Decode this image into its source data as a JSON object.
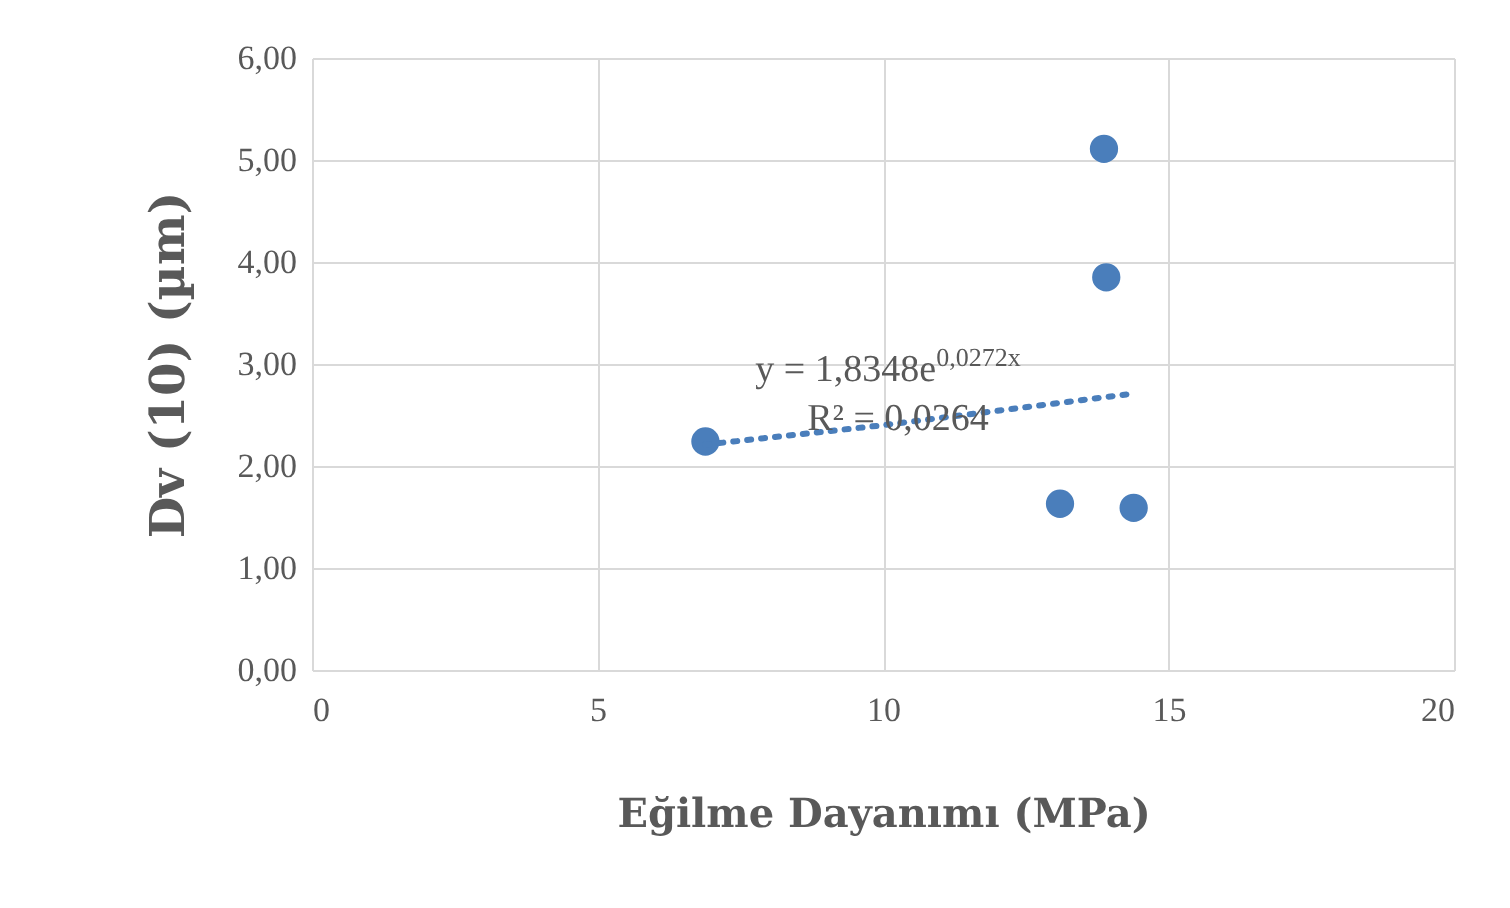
{
  "chart_data": {
    "type": "scatter",
    "xlabel": "Eğilme Dayanımı (MPa)",
    "ylabel": "Dv (10) (µm)",
    "x": [
      6.89,
      13.87,
      13.91,
      13.1,
      14.39
    ],
    "series": [
      {
        "color": "#4a7ebb",
        "values": [
          2.24,
          5.11,
          3.85,
          1.63,
          1.59
        ]
      },
      {
        "type": "line",
        "color": "#4a7ebb",
        "line_style": "dotted",
        "marker": "none",
        "x": [
          6.89,
          10,
          14.39
        ],
        "values": [
          2.21,
          2.4,
          2.71
        ]
      }
    ],
    "xlim": [
      0,
      20
    ],
    "xticks": [
      0,
      5,
      10,
      15,
      20
    ],
    "ylim": [
      0,
      6
    ],
    "yticks": [
      {
        "value": 0,
        "label": "0,00"
      },
      {
        "value": 1,
        "label": "1,00"
      },
      {
        "value": 2,
        "label": "2,00"
      },
      {
        "value": 3,
        "label": "3,00"
      },
      {
        "value": 4,
        "label": "4,00"
      },
      {
        "value": 5,
        "label": "5,00"
      },
      {
        "value": 6,
        "label": "6,00"
      }
    ],
    "grid": true,
    "marker": "circle",
    "annotations": [
      "y = 1,8348e$^{0,0272x}$",
      "R² = 0,0264"
    ]
  }
}
